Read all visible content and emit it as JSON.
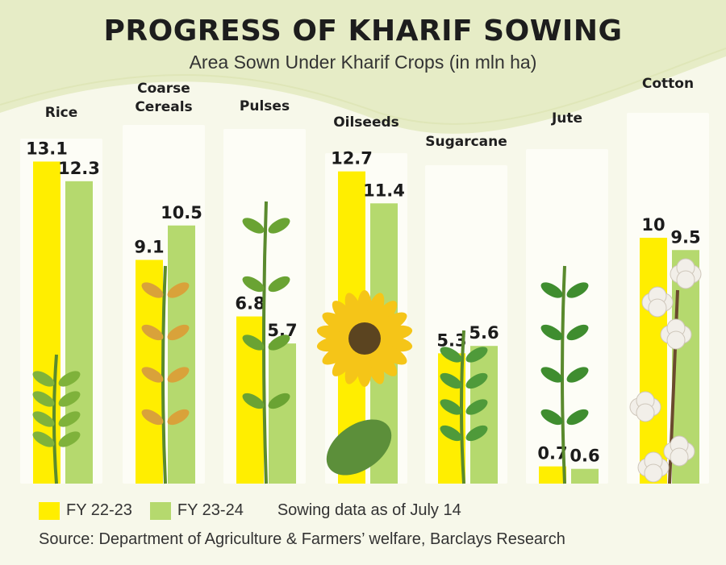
{
  "header": {
    "title": "PROGRESS OF KHARIF SOWING",
    "subtitle": "Area Sown Under Kharif Crops (in mln ha)"
  },
  "legend": {
    "fy1_label": "FY 22-23",
    "fy2_label": "FY 23-24",
    "note": "Sowing data as of July 14"
  },
  "footer": {
    "source": "Source: Department of Agriculture & Farmers’ welfare, Barclays Research"
  },
  "colors": {
    "fy1": "#ffee00",
    "fy2": "#b5d96e",
    "panel": "#fdfdf6",
    "background": "#f7f8ea",
    "wave": "#e6ecc6"
  },
  "chart_data": {
    "type": "bar",
    "title": "PROGRESS OF KHARIF SOWING",
    "subtitle": "Area Sown Under Kharif Crops (in mln ha)",
    "categories": [
      "Rice",
      "Coarse Cereals",
      "Pulses",
      "Oilseeds",
      "Sugarcane",
      "Jute",
      "Cotton"
    ],
    "category_labels": [
      [
        "Rice"
      ],
      [
        "Coarse",
        "Cereals"
      ],
      [
        "Pulses"
      ],
      [
        "Oilseeds"
      ],
      [
        "Sugarcane"
      ],
      [
        "Jute"
      ],
      [
        "Cotton"
      ]
    ],
    "series": [
      {
        "name": "FY 22-23",
        "values": [
          13.1,
          9.1,
          6.8,
          12.7,
          5.3,
          0.7,
          10
        ],
        "labels": [
          "13.1",
          "9.1",
          "6.8",
          "12.7",
          "5.3",
          "0.7",
          "10"
        ]
      },
      {
        "name": "FY 23-24",
        "values": [
          12.3,
          10.5,
          5.7,
          11.4,
          5.6,
          0.6,
          9.5
        ],
        "labels": [
          "12.3",
          "10.5",
          "5.7",
          "11.4",
          "5.6",
          "0.6",
          "9.5"
        ]
      }
    ],
    "ylim": [
      0,
      14
    ],
    "grid": false,
    "legend_position": "bottom-left"
  }
}
